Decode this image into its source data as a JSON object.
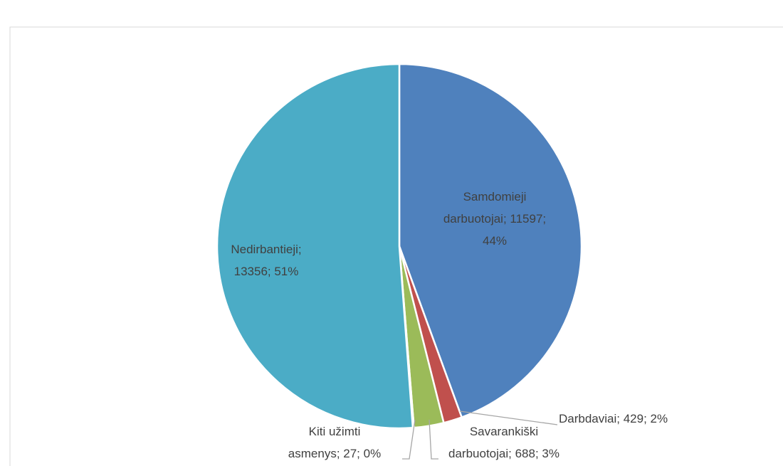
{
  "chart_data": {
    "type": "pie",
    "values": [
      11597,
      429,
      688,
      27,
      13356
    ],
    "value_labels": [
      [
        "Samdomieji",
        "darbuotojai; 11597;",
        "44%"
      ],
      [
        "Darbdaviai; 429; 2%"
      ],
      [
        "Savarankiški",
        "darbuotojai; 688; 3%"
      ],
      [
        "Kiti užimti",
        "asmenys; 27; 0%"
      ],
      [
        "Nedirbantieji;",
        "13356; 51%"
      ]
    ],
    "colors": [
      "#4f81bd",
      "#c0504d",
      "#9bbb59",
      "#8064a2",
      "#4bacc6"
    ]
  }
}
